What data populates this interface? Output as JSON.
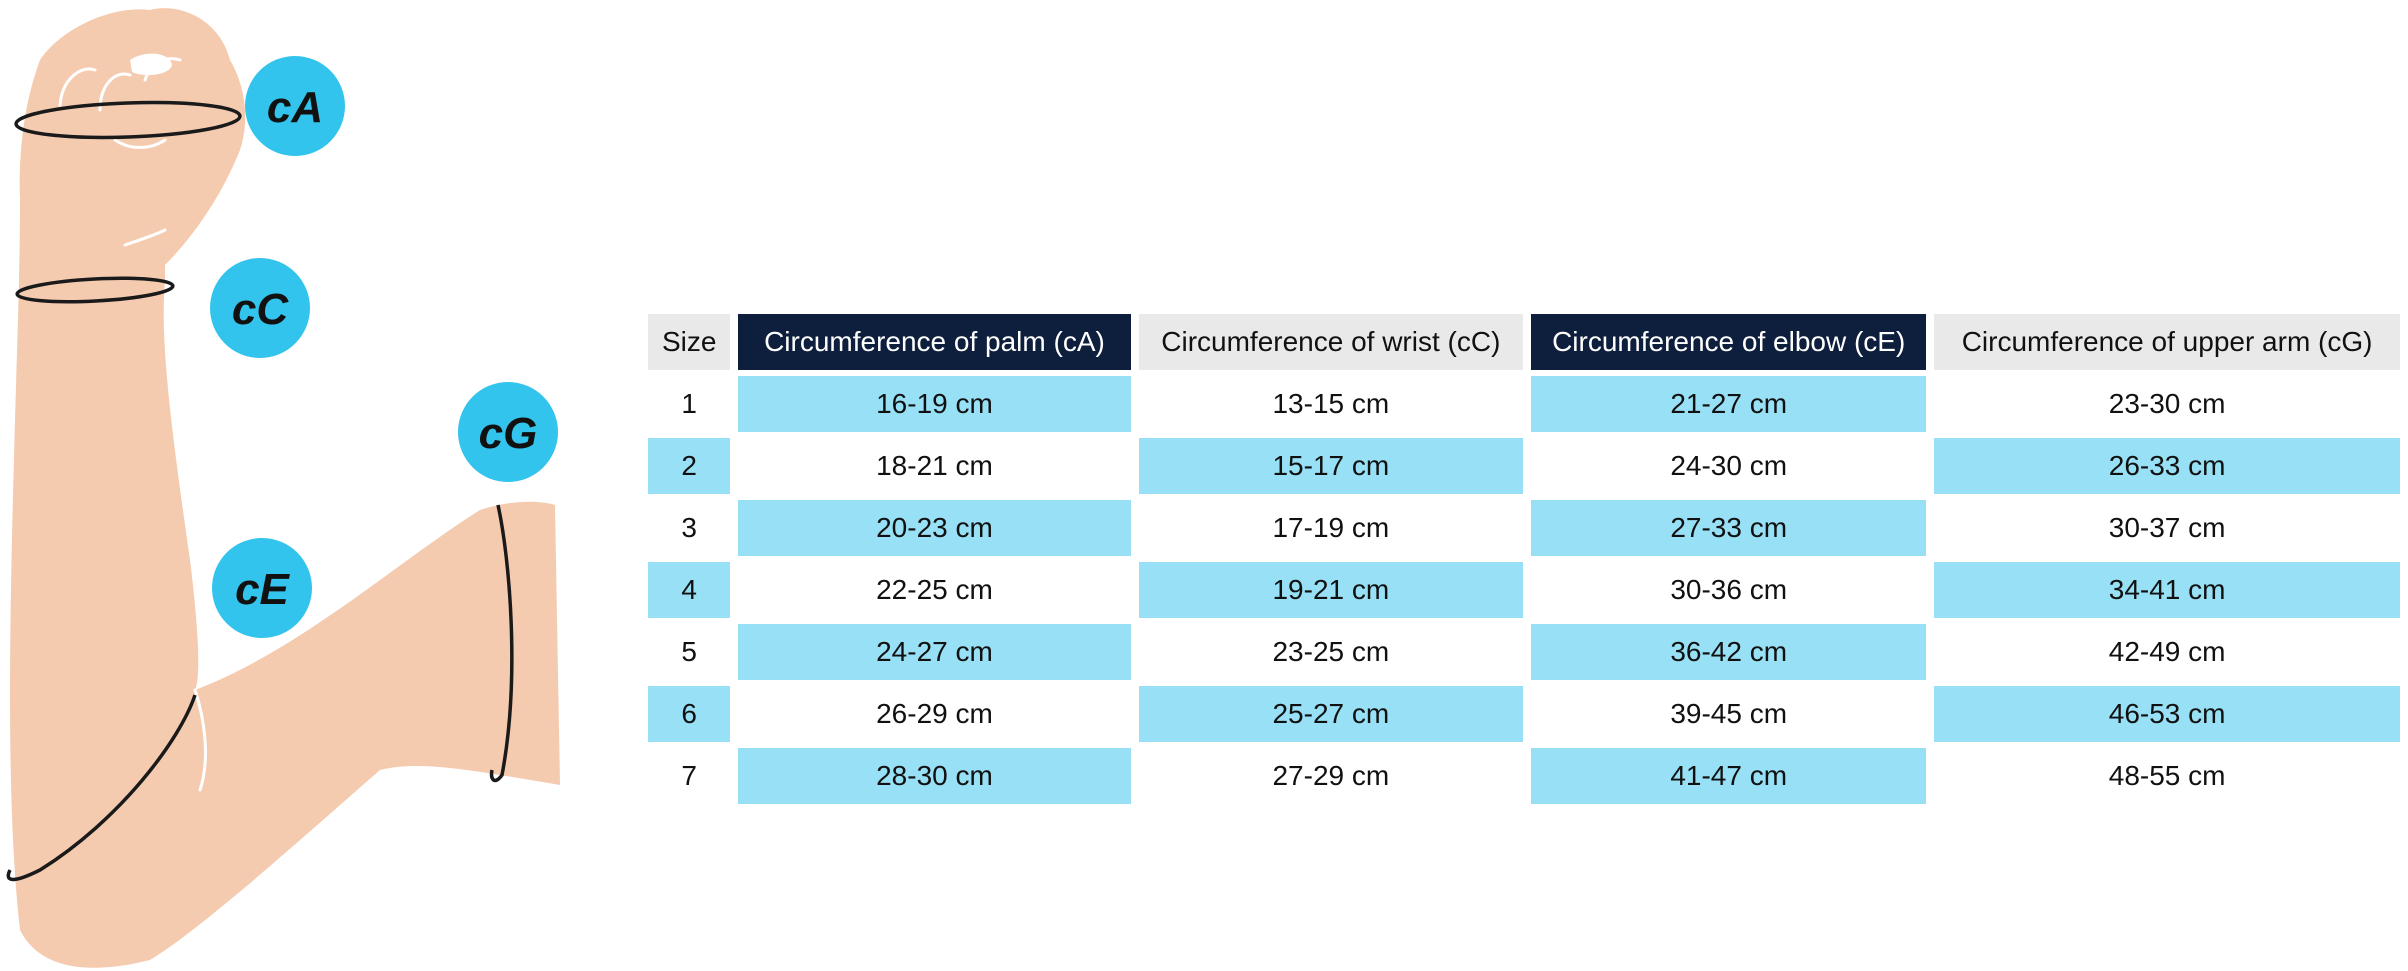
{
  "figure": {
    "colors": {
      "skin": "#f5cbb0",
      "badge": "#32c4ec",
      "ring": "#1a1a1a",
      "header_dark": "#0e1f3d",
      "header_light": "#e9e9e9",
      "highlight": "#97e0f5"
    },
    "badges": [
      "cA",
      "cC",
      "cG",
      "cE"
    ]
  },
  "table": {
    "headers": [
      "Size",
      "Circumference of palm (cA)",
      "Circumference of wrist (cC)",
      "Circumference of elbow (cE)",
      "Circumference of upper arm (cG)"
    ],
    "rows": [
      [
        "1",
        "16-19 cm",
        "13-15 cm",
        "21-27 cm",
        "23-30 cm"
      ],
      [
        "2",
        "18-21 cm",
        "15-17 cm",
        "24-30 cm",
        "26-33 cm"
      ],
      [
        "3",
        "20-23 cm",
        "17-19 cm",
        "27-33 cm",
        "30-37 cm"
      ],
      [
        "4",
        "22-25 cm",
        "19-21 cm",
        "30-36 cm",
        "34-41 cm"
      ],
      [
        "5",
        "24-27 cm",
        "23-25 cm",
        "36-42 cm",
        "42-49 cm"
      ],
      [
        "6",
        "26-29 cm",
        "25-27 cm",
        "39-45 cm",
        "46-53 cm"
      ],
      [
        "7",
        "28-30 cm",
        "27-29 cm",
        "41-47 cm",
        "48-55 cm"
      ]
    ]
  }
}
